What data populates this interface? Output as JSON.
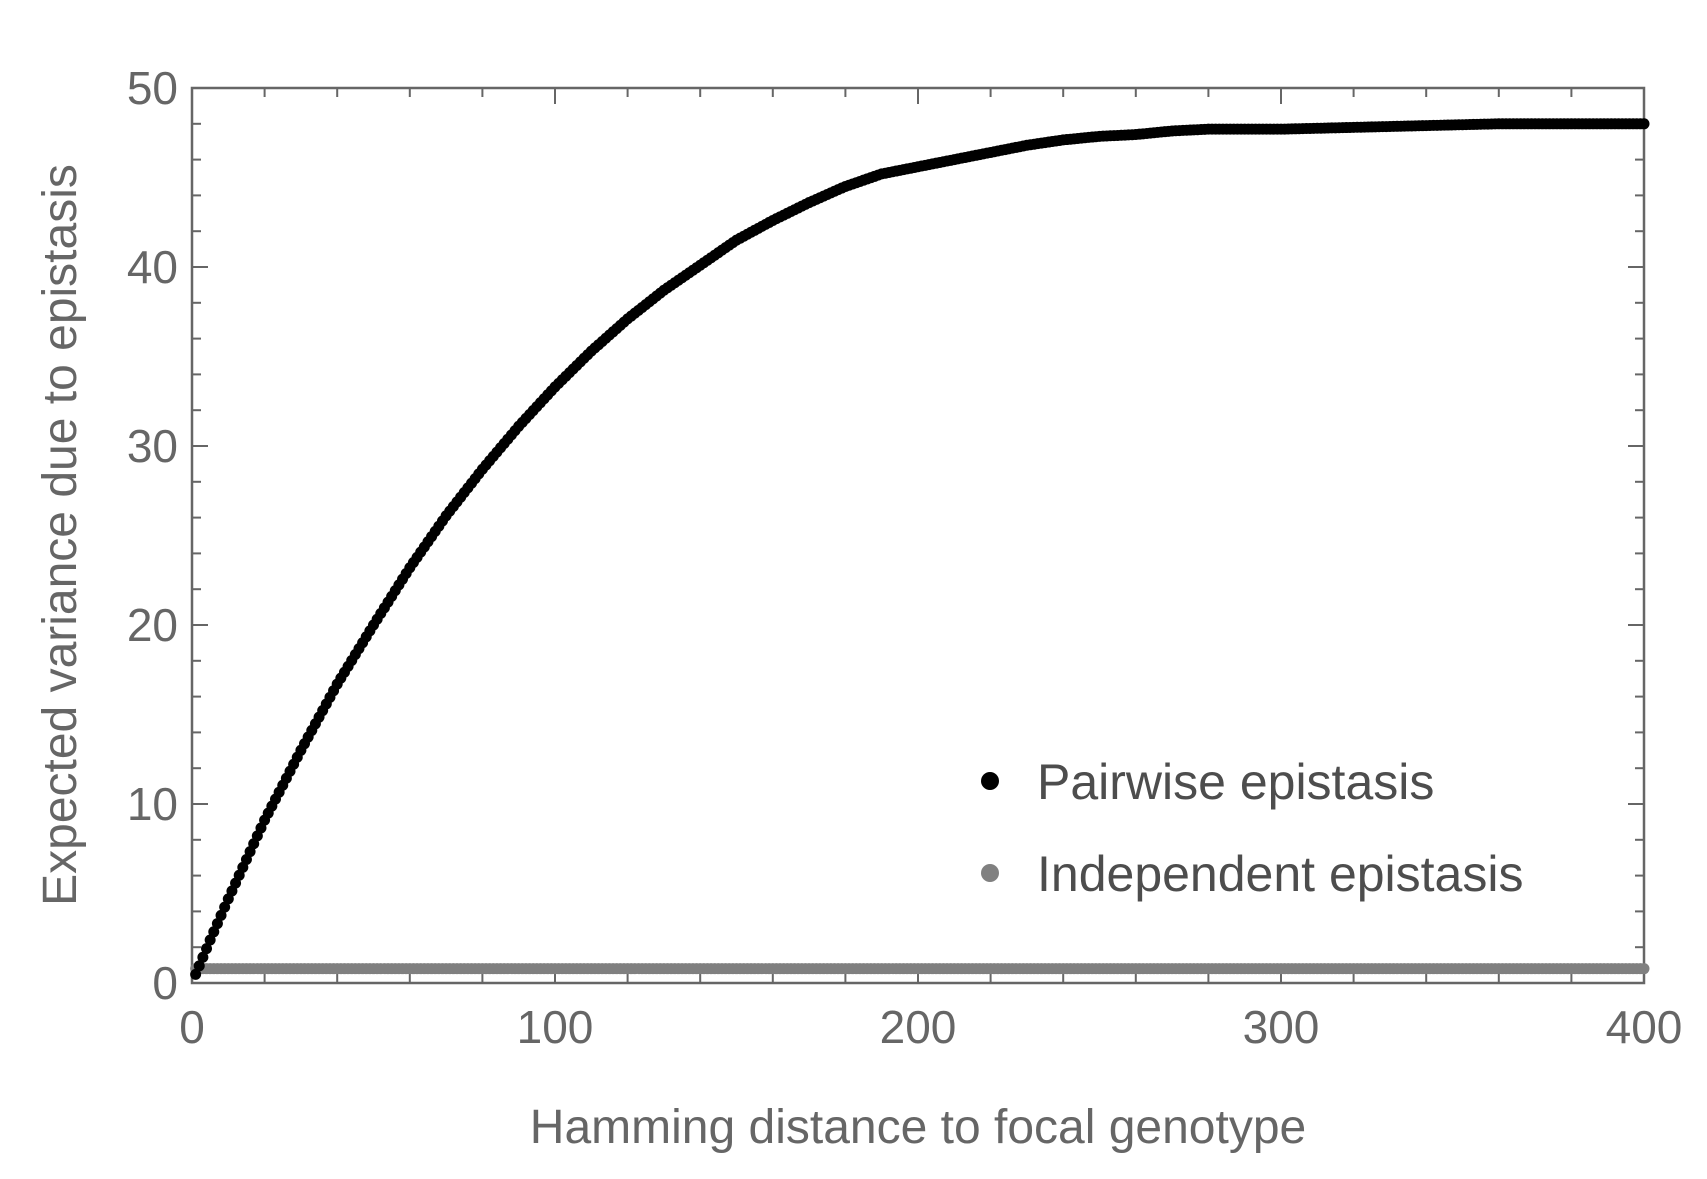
{
  "chart_data": {
    "type": "scatter",
    "xlabel": "Hamming distance to focal genotype",
    "ylabel": "Expected variance due to epistasis",
    "xlim": [
      0,
      400
    ],
    "ylim": [
      0,
      50
    ],
    "x_ticks": [
      "0",
      "100",
      "200",
      "300",
      "400"
    ],
    "y_ticks": [
      "0",
      "10",
      "20",
      "30",
      "40",
      "50"
    ],
    "grid": false,
    "legend_position": "bottom-right",
    "series": [
      {
        "name": "Pairwise epistasis",
        "color": "#000000",
        "x_range": [
          1,
          400
        ],
        "points": [
          [
            0,
            0
          ],
          [
            5,
            2.4
          ],
          [
            10,
            4.7
          ],
          [
            20,
            9.1
          ],
          [
            30,
            13.0
          ],
          [
            40,
            16.7
          ],
          [
            50,
            20.0
          ],
          [
            60,
            23.2
          ],
          [
            70,
            26.1
          ],
          [
            80,
            28.7
          ],
          [
            90,
            31.1
          ],
          [
            100,
            33.3
          ],
          [
            110,
            35.3
          ],
          [
            120,
            37.1
          ],
          [
            130,
            38.7
          ],
          [
            140,
            40.1
          ],
          [
            150,
            41.5
          ],
          [
            160,
            42.6
          ],
          [
            170,
            43.6
          ],
          [
            180,
            44.5
          ],
          [
            190,
            45.2
          ],
          [
            200,
            45.6
          ],
          [
            210,
            46.0
          ],
          [
            220,
            46.4
          ],
          [
            230,
            46.8
          ],
          [
            240,
            47.1
          ],
          [
            250,
            47.3
          ],
          [
            260,
            47.4
          ],
          [
            270,
            47.6
          ],
          [
            280,
            47.7
          ],
          [
            300,
            47.7
          ],
          [
            320,
            47.8
          ],
          [
            340,
            47.9
          ],
          [
            360,
            48.0
          ],
          [
            380,
            48.0
          ],
          [
            400,
            48.0
          ]
        ]
      },
      {
        "name": "Independent epistasis",
        "color": "#808080",
        "x_range": [
          1,
          400
        ],
        "points": [
          [
            0,
            0.8
          ],
          [
            400,
            0.8
          ]
        ]
      }
    ]
  }
}
